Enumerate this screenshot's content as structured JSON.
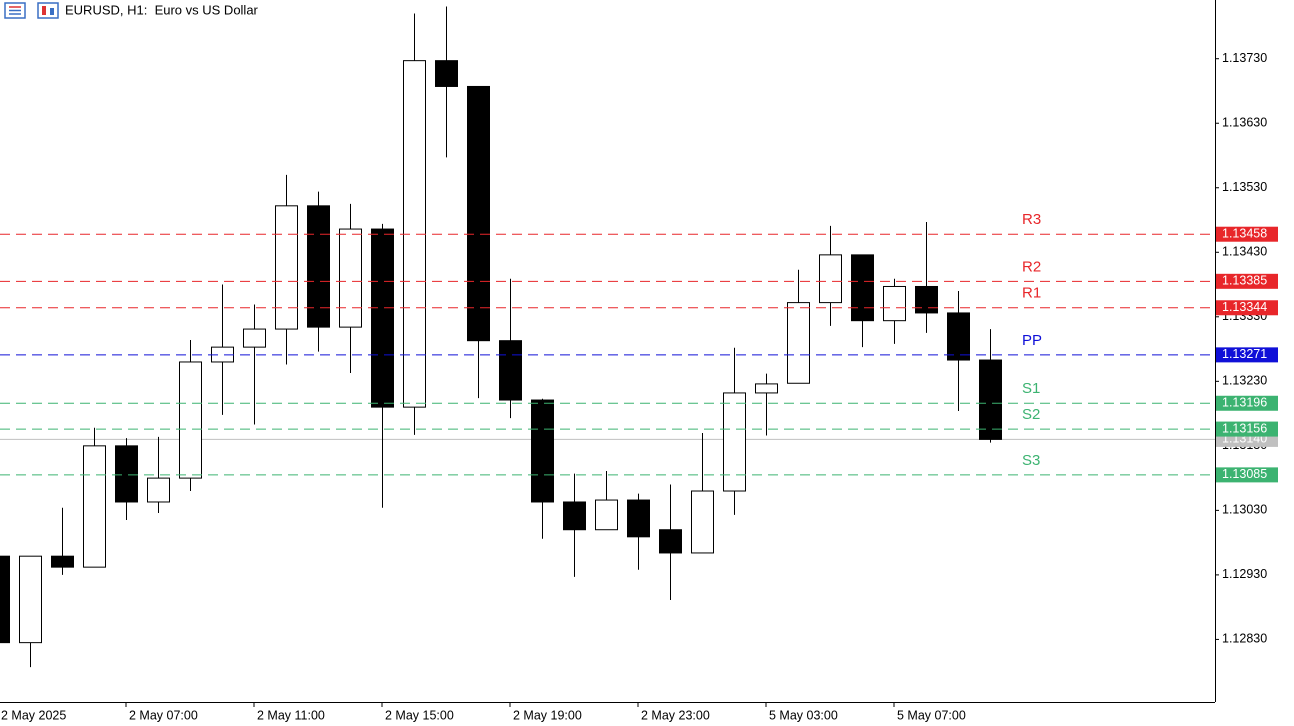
{
  "chart_data": {
    "type": "candlestick",
    "title": "EURUSD, H1:  Euro vs US Dollar",
    "categories": [
      "2 May 2025",
      null,
      null,
      null,
      "2 May 07:00",
      null,
      null,
      null,
      "2 May 11:00",
      null,
      null,
      null,
      "2 May 15:00",
      null,
      null,
      null,
      "2 May 19:00",
      null,
      null,
      null,
      "2 May 23:00",
      null,
      null,
      null,
      "5 May 03:00",
      null,
      null,
      null,
      "5 May 07:00",
      null,
      null,
      null
    ],
    "open": [
      1.12959,
      1.12825,
      1.12959,
      1.12942,
      1.1313,
      1.13043,
      1.1308,
      1.1326,
      1.13283,
      1.13311,
      1.13502,
      1.13314,
      1.13466,
      1.1319,
      1.13727,
      1.13687,
      1.13293,
      1.13201,
      1.13043,
      1.13,
      1.13046,
      1.13,
      1.12964,
      1.1306,
      1.13212,
      1.13227,
      1.13352,
      1.13426,
      1.13324,
      1.13377,
      1.13336,
      1.13263
    ],
    "high": [
      1.12959,
      1.12959,
      1.13034,
      1.13158,
      1.13142,
      1.13144,
      1.13294,
      1.1338,
      1.13349,
      1.1355,
      1.13524,
      1.13505,
      1.13474,
      1.138,
      1.13811,
      1.13687,
      1.13389,
      1.13203,
      1.13087,
      1.13091,
      1.13056,
      1.1307,
      1.1315,
      1.13282,
      1.13242,
      1.13403,
      1.13471,
      1.13426,
      1.13389,
      1.13477,
      1.1337,
      1.13311
    ],
    "low": [
      1.12825,
      1.12787,
      1.1293,
      1.12942,
      1.13015,
      1.13026,
      1.1306,
      1.13178,
      1.13163,
      1.13256,
      1.13276,
      1.13243,
      1.13034,
      1.13147,
      1.13577,
      1.13204,
      1.13173,
      1.12986,
      1.12927,
      1.13,
      1.12938,
      1.12891,
      1.12964,
      1.13023,
      1.13146,
      1.13227,
      1.13316,
      1.13283,
      1.13288,
      1.13305,
      1.13184,
      1.13135
    ],
    "close": [
      1.12825,
      1.12959,
      1.12942,
      1.1313,
      1.13043,
      1.1308,
      1.1326,
      1.13283,
      1.13311,
      1.13502,
      1.13314,
      1.13466,
      1.1319,
      1.13727,
      1.13687,
      1.13293,
      1.13201,
      1.13043,
      1.13,
      1.13046,
      1.12989,
      1.12964,
      1.1306,
      1.13212,
      1.13226,
      1.13352,
      1.13426,
      1.13324,
      1.13377,
      1.13336,
      1.13263,
      1.1314
    ],
    "up_color": "#ffffff",
    "down_color": "#000000",
    "ylim": [
      1.12733,
      1.13821
    ],
    "yticks": [
      {
        "value": 1.1283,
        "label": "1.12830"
      },
      {
        "value": 1.1293,
        "label": "1.12930"
      },
      {
        "value": 1.1303,
        "label": "1.13030"
      },
      {
        "value": 1.1313,
        "label": "1.13130"
      },
      {
        "value": 1.1323,
        "label": "1.13230"
      },
      {
        "value": 1.1333,
        "label": "1.13330"
      },
      {
        "value": 1.1343,
        "label": "1.13430"
      },
      {
        "value": 1.1353,
        "label": "1.13530"
      },
      {
        "value": 1.1363,
        "label": "1.13630"
      },
      {
        "value": 1.1373,
        "label": "1.13730"
      }
    ],
    "current_price": {
      "value": 1.1314,
      "label": "1.13140",
      "color": "#c0c0c0"
    },
    "levels": [
      {
        "name": "R3",
        "value": 1.13458,
        "color": "#e8262a"
      },
      {
        "name": "R2",
        "value": 1.13385,
        "color": "#e8262a"
      },
      {
        "name": "R1",
        "value": 1.13344,
        "color": "#e8262a"
      },
      {
        "name": "PP",
        "value": 1.13271,
        "color": "#1010d8"
      },
      {
        "name": "S1",
        "value": 1.13196,
        "color": "#3cb371"
      },
      {
        "name": "S2",
        "value": 1.13156,
        "color": "#3cb371"
      },
      {
        "name": "S3",
        "value": 1.13085,
        "color": "#3cb371"
      }
    ]
  }
}
